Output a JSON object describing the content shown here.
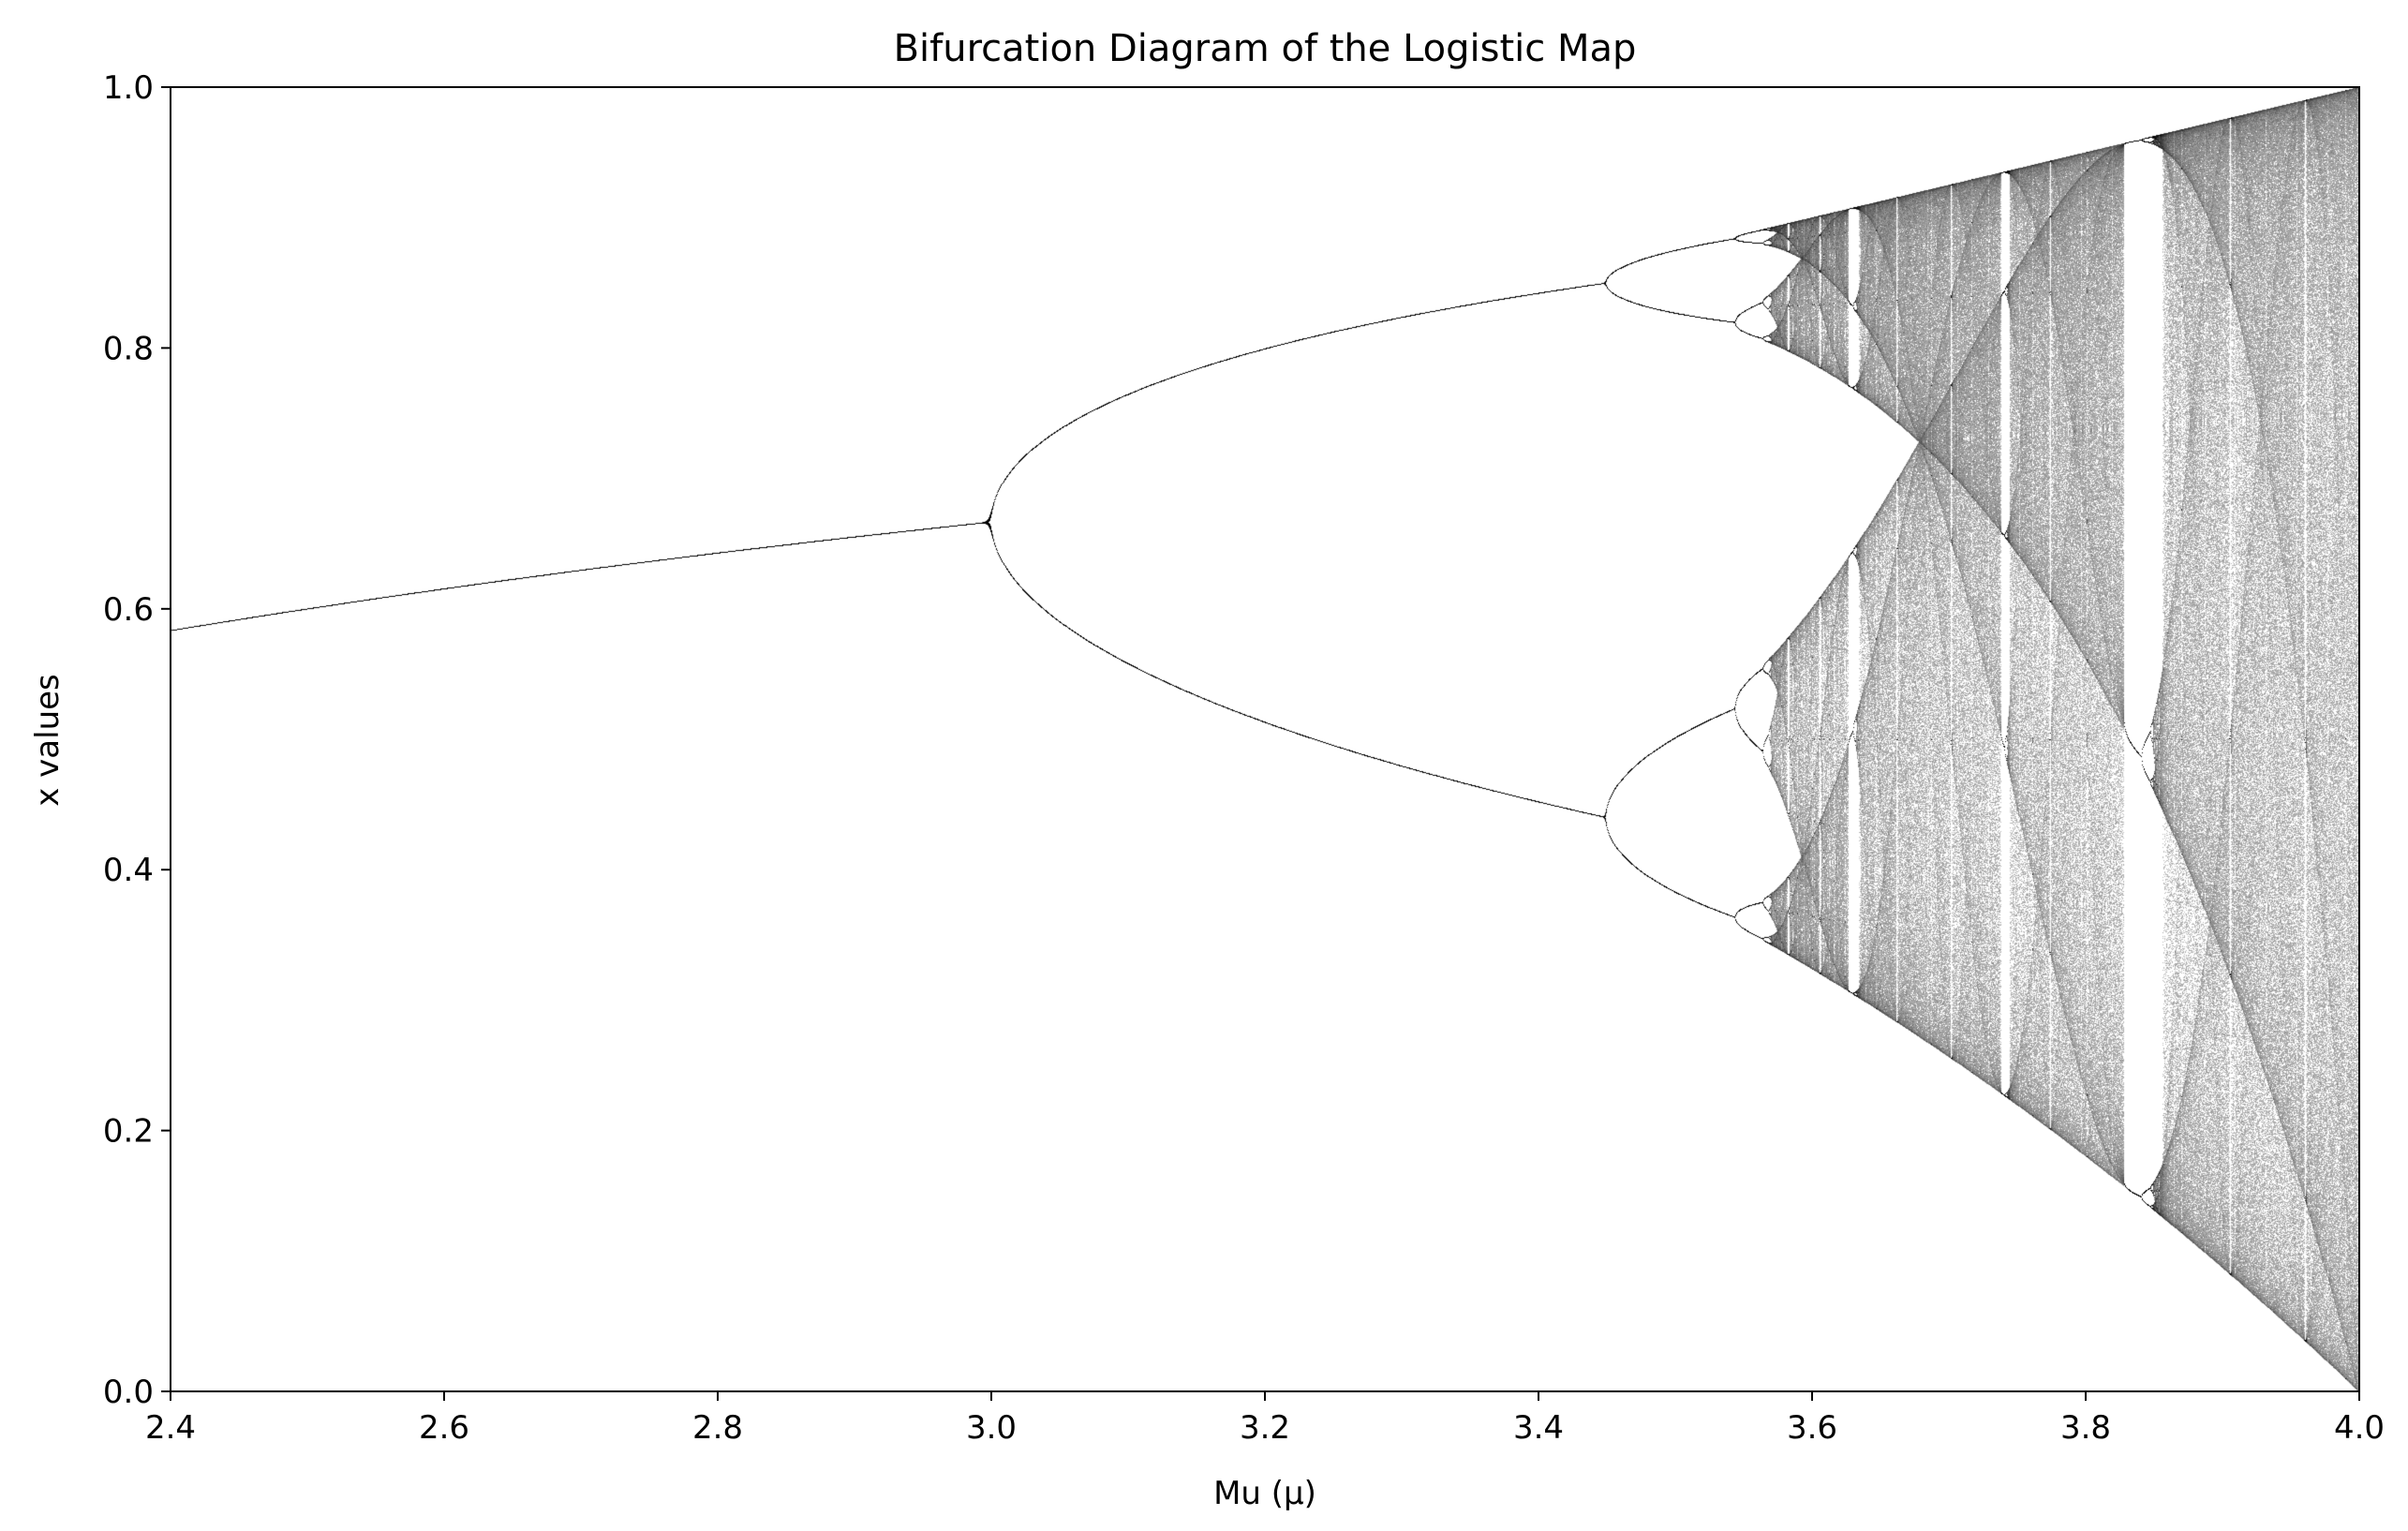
{
  "chart_data": {
    "type": "scatter",
    "title": "Bifurcation Diagram of the Logistic Map",
    "xlabel": "Mu (μ)",
    "ylabel": "x values",
    "xlim": [
      2.4,
      4.0
    ],
    "ylim": [
      0.0,
      1.0
    ],
    "x_ticks": [
      "2.4",
      "2.6",
      "2.8",
      "3.0",
      "3.2",
      "3.4",
      "3.6",
      "3.8",
      "4.0"
    ],
    "y_ticks": [
      "0.0",
      "0.2",
      "0.4",
      "0.6",
      "0.8",
      "1.0"
    ],
    "grid": false,
    "legend": "none",
    "marker_color": "#000000",
    "series": [
      {
        "map": "x_next = mu * x * (1 - x)",
        "mu_range": [
          2.4,
          4.0
        ],
        "x_range": [
          0.0,
          1.0
        ]
      }
    ]
  }
}
